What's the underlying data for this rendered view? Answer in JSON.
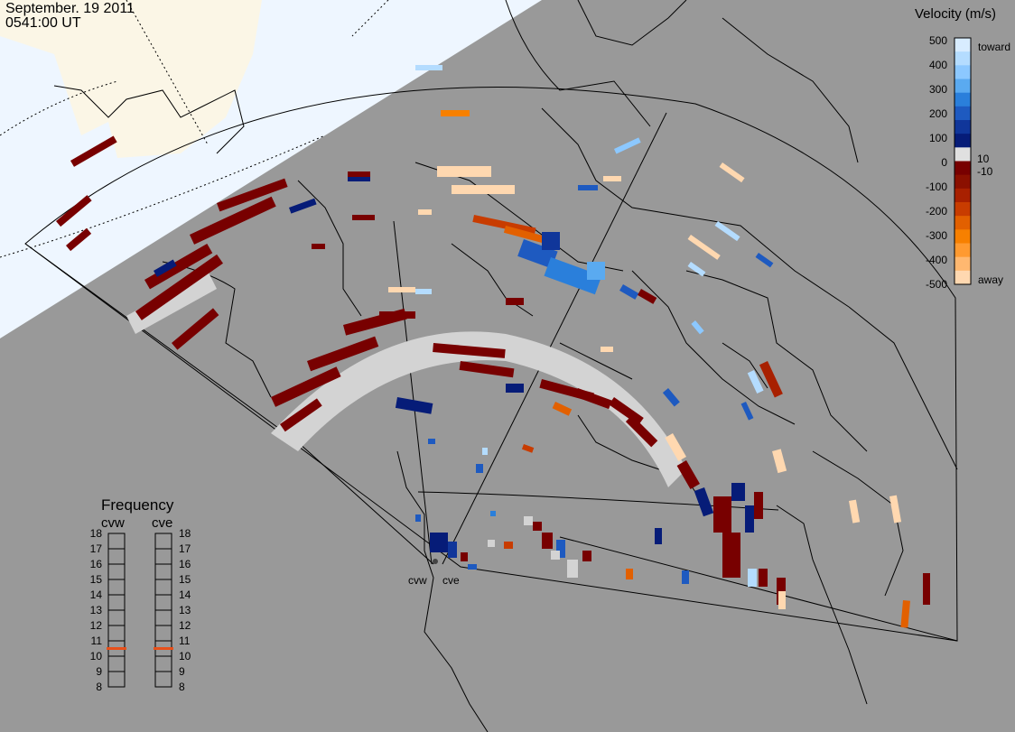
{
  "header": {
    "date": "September. 19 2011",
    "time": "0541:00 UT"
  },
  "legend": {
    "title": "Velocity (m/s)",
    "ticks": [
      "500",
      "400",
      "300",
      "200",
      "100",
      "10",
      "0",
      "-10",
      "-100",
      "-200",
      "-300",
      "-400",
      "-500"
    ],
    "toward_label": "toward",
    "away_label": "away",
    "colors": [
      "#d8ecff",
      "#b4dcff",
      "#8cc8ff",
      "#5aaaf0",
      "#2a7fdb",
      "#1e5ac0",
      "#10369a",
      "#061c78",
      "#e0e0e0",
      "#780000",
      "#8b1000",
      "#a82000",
      "#c83c00",
      "#e26000",
      "#f78000",
      "#ff9a30",
      "#ffb870",
      "#ffd8b0"
    ]
  },
  "radars": {
    "cvw_label": "cvw",
    "cve_label": "cve"
  },
  "frequency": {
    "title": "Frequency",
    "cvw_label": "cvw",
    "cve_label": "cve",
    "ticks": [
      "18",
      "17",
      "16",
      "15",
      "14",
      "13",
      "12",
      "11",
      "10",
      "9",
      "8"
    ],
    "cvw_mhz": 10.5,
    "cve_mhz": 10.5,
    "marker_color": "#e8501a"
  },
  "map_colors": {
    "ocean_dark": "#999999",
    "daylight_sky": "#eef6ff",
    "daylight_land": "#fbf6e6",
    "ground_scatter": "#d3d3d3"
  }
}
